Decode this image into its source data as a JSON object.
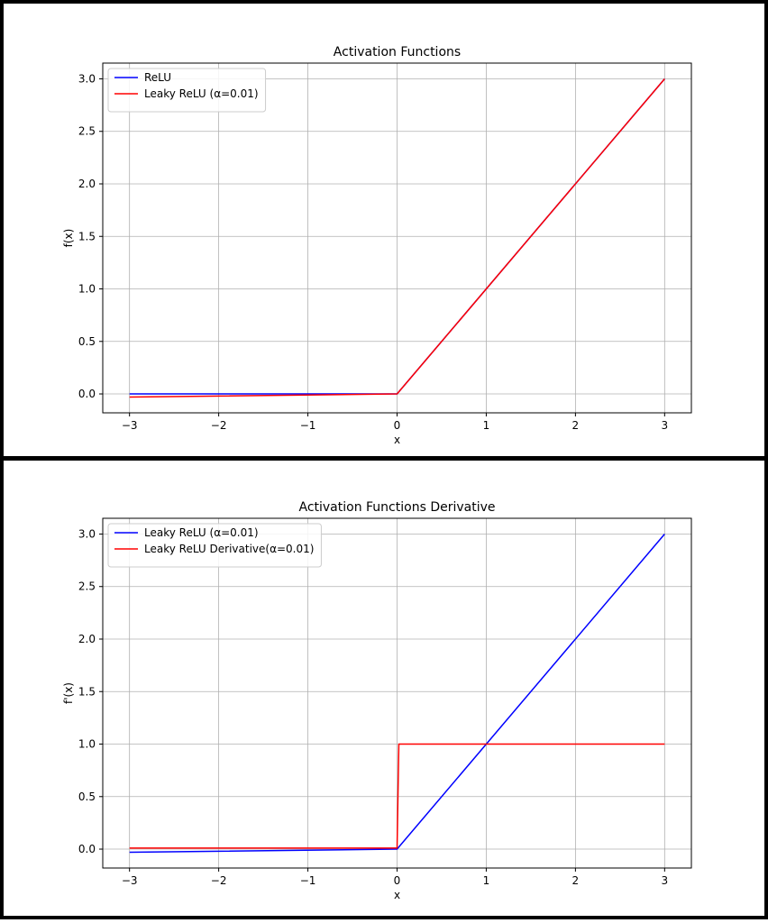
{
  "chart_data": [
    {
      "type": "line",
      "title": "Activation Functions",
      "xlabel": "x",
      "ylabel": "f(x)",
      "xlim": [
        -3.3,
        3.3
      ],
      "ylim": [
        -0.18,
        3.15
      ],
      "xticks": [
        -3,
        -2,
        -1,
        0,
        1,
        2,
        3
      ],
      "xtick_labels": [
        "−3",
        "−2",
        "−1",
        "0",
        "1",
        "2",
        "3"
      ],
      "yticks": [
        0.0,
        0.5,
        1.0,
        1.5,
        2.0,
        2.5,
        3.0
      ],
      "ytick_labels": [
        "0.0",
        "0.5",
        "1.0",
        "1.5",
        "2.0",
        "2.5",
        "3.0"
      ],
      "grid": true,
      "legend_position": "top-left",
      "series": [
        {
          "name": "ReLU",
          "color": "#0000ff",
          "x": [
            -3,
            0,
            3
          ],
          "y": [
            0,
            0,
            3
          ]
        },
        {
          "name": "Leaky ReLU (α=0.01)",
          "color": "#ff0000",
          "x": [
            -3,
            0,
            3
          ],
          "y": [
            -0.03,
            0,
            3
          ]
        }
      ]
    },
    {
      "type": "line",
      "title": "Activation Functions Derivative",
      "xlabel": "x",
      "ylabel": "f'(x)",
      "xlim": [
        -3.3,
        3.3
      ],
      "ylim": [
        -0.18,
        3.15
      ],
      "xticks": [
        -3,
        -2,
        -1,
        0,
        1,
        2,
        3
      ],
      "xtick_labels": [
        "−3",
        "−2",
        "−1",
        "0",
        "1",
        "2",
        "3"
      ],
      "yticks": [
        0.0,
        0.5,
        1.0,
        1.5,
        2.0,
        2.5,
        3.0
      ],
      "ytick_labels": [
        "0.0",
        "0.5",
        "1.0",
        "1.5",
        "2.0",
        "2.5",
        "3.0"
      ],
      "grid": true,
      "legend_position": "top-left",
      "series": [
        {
          "name": "Leaky ReLU (α=0.01)",
          "color": "#0000ff",
          "x": [
            -3,
            0,
            3
          ],
          "y": [
            -0.03,
            0,
            3
          ]
        },
        {
          "name": "Leaky ReLU Derivative(α=0.01)",
          "color": "#ff0000",
          "x": [
            -3,
            0,
            0.02,
            3
          ],
          "y": [
            0.01,
            0.01,
            1,
            1
          ]
        }
      ]
    }
  ]
}
